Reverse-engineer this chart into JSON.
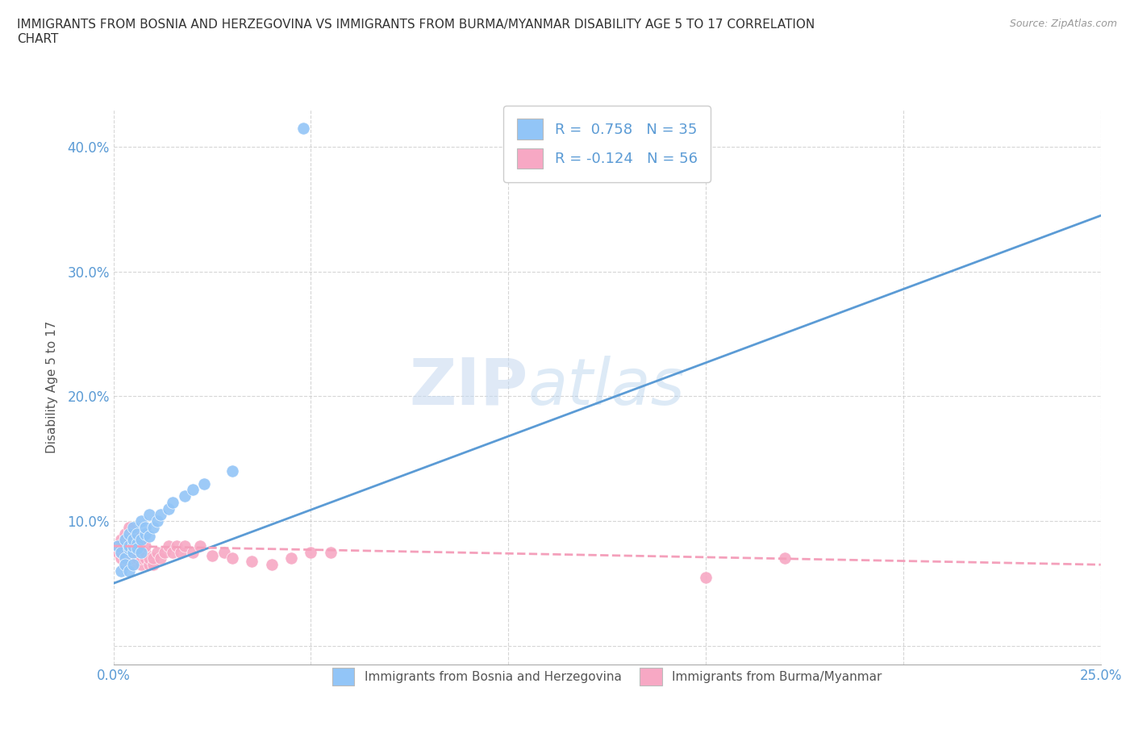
{
  "title": "IMMIGRANTS FROM BOSNIA AND HERZEGOVINA VS IMMIGRANTS FROM BURMA/MYANMAR DISABILITY AGE 5 TO 17 CORRELATION\nCHART",
  "source_text": "Source: ZipAtlas.com",
  "ylabel": "Disability Age 5 to 17",
  "xlim": [
    0.0,
    0.25
  ],
  "ylim": [
    -0.015,
    0.43
  ],
  "x_ticks": [
    0.0,
    0.05,
    0.1,
    0.15,
    0.2,
    0.25
  ],
  "x_tick_labels": [
    "0.0%",
    "",
    "",
    "",
    "",
    "25.0%"
  ],
  "y_ticks": [
    0.0,
    0.1,
    0.2,
    0.3,
    0.4
  ],
  "y_tick_labels": [
    "",
    "10.0%",
    "20.0%",
    "30.0%",
    "40.0%"
  ],
  "color_bosnia": "#92c5f7",
  "color_burma": "#f7a8c4",
  "color_line_bosnia": "#5b9bd5",
  "color_line_burma": "#f4a0bb",
  "watermark_zip": "ZIP",
  "watermark_atlas": "atlas",
  "bosnia_scatter_x": [
    0.001,
    0.002,
    0.002,
    0.003,
    0.003,
    0.003,
    0.004,
    0.004,
    0.004,
    0.004,
    0.005,
    0.005,
    0.005,
    0.005,
    0.005,
    0.006,
    0.006,
    0.006,
    0.007,
    0.007,
    0.007,
    0.008,
    0.008,
    0.009,
    0.009,
    0.01,
    0.011,
    0.012,
    0.014,
    0.015,
    0.018,
    0.02,
    0.023,
    0.03,
    0.048
  ],
  "bosnia_scatter_y": [
    0.08,
    0.075,
    0.06,
    0.07,
    0.065,
    0.085,
    0.078,
    0.08,
    0.06,
    0.09,
    0.075,
    0.08,
    0.065,
    0.085,
    0.095,
    0.082,
    0.078,
    0.09,
    0.085,
    0.075,
    0.1,
    0.09,
    0.095,
    0.088,
    0.105,
    0.095,
    0.1,
    0.105,
    0.11,
    0.115,
    0.12,
    0.125,
    0.13,
    0.14,
    0.415
  ],
  "burma_scatter_x": [
    0.001,
    0.001,
    0.002,
    0.002,
    0.002,
    0.002,
    0.003,
    0.003,
    0.003,
    0.003,
    0.003,
    0.004,
    0.004,
    0.004,
    0.004,
    0.004,
    0.004,
    0.005,
    0.005,
    0.005,
    0.005,
    0.005,
    0.005,
    0.006,
    0.006,
    0.006,
    0.007,
    0.007,
    0.007,
    0.008,
    0.008,
    0.008,
    0.009,
    0.009,
    0.01,
    0.01,
    0.011,
    0.012,
    0.013,
    0.014,
    0.015,
    0.016,
    0.017,
    0.018,
    0.02,
    0.022,
    0.025,
    0.028,
    0.03,
    0.035,
    0.04,
    0.045,
    0.05,
    0.055,
    0.15,
    0.17
  ],
  "burma_scatter_y": [
    0.075,
    0.08,
    0.07,
    0.075,
    0.08,
    0.085,
    0.065,
    0.075,
    0.08,
    0.085,
    0.09,
    0.07,
    0.075,
    0.08,
    0.085,
    0.09,
    0.095,
    0.065,
    0.07,
    0.075,
    0.08,
    0.085,
    0.09,
    0.07,
    0.075,
    0.08,
    0.065,
    0.07,
    0.075,
    0.07,
    0.075,
    0.08,
    0.065,
    0.07,
    0.065,
    0.07,
    0.075,
    0.07,
    0.075,
    0.08,
    0.075,
    0.08,
    0.075,
    0.08,
    0.075,
    0.08,
    0.072,
    0.075,
    0.07,
    0.068,
    0.065,
    0.07,
    0.075,
    0.075,
    0.055,
    0.07
  ],
  "bosnia_line_x0": 0.0,
  "bosnia_line_y0": 0.05,
  "bosnia_line_x1": 0.25,
  "bosnia_line_y1": 0.345,
  "burma_line_x0": 0.0,
  "burma_line_y0": 0.08,
  "burma_line_x1": 0.25,
  "burma_line_y1": 0.065
}
